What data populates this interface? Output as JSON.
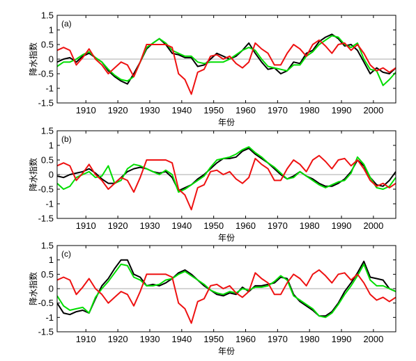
{
  "chart_data": [
    {
      "type": "line",
      "panel_label": "(a)",
      "xlabel": "年份",
      "ylabel": "降水指数",
      "xlim": [
        1901,
        2007
      ],
      "ylim": [
        -1.5,
        1.5
      ],
      "x_ticks": [
        1910,
        1920,
        1930,
        1940,
        1950,
        1960,
        1970,
        1980,
        1990,
        2000
      ],
      "y_ticks": [
        -1.5,
        -1,
        -0.5,
        0,
        0.5,
        1,
        1.5
      ],
      "zero_line": true,
      "x": [
        1901,
        1903,
        1905,
        1907,
        1909,
        1911,
        1913,
        1915,
        1917,
        1919,
        1921,
        1923,
        1925,
        1927,
        1929,
        1931,
        1933,
        1935,
        1937,
        1939,
        1941,
        1943,
        1945,
        1947,
        1949,
        1951,
        1953,
        1955,
        1957,
        1959,
        1961,
        1963,
        1965,
        1967,
        1969,
        1971,
        1973,
        1975,
        1977,
        1979,
        1981,
        1983,
        1985,
        1987,
        1989,
        1991,
        1993,
        1995,
        1997,
        1999,
        2001,
        2003,
        2005,
        2007
      ],
      "series": [
        {
          "color": "#000000",
          "values": [
            -0.1,
            0.0,
            0.05,
            -0.1,
            0.1,
            0.2,
            0.05,
            -0.1,
            -0.4,
            -0.6,
            -0.75,
            -0.85,
            -0.5,
            -0.1,
            0.35,
            0.55,
            0.7,
            0.5,
            0.2,
            0.15,
            0.05,
            0.05,
            -0.25,
            -0.2,
            0.0,
            0.2,
            0.1,
            0.0,
            0.1,
            0.3,
            0.55,
            0.2,
            -0.1,
            -0.35,
            -0.3,
            -0.5,
            -0.4,
            -0.1,
            -0.15,
            0.2,
            0.3,
            0.6,
            0.75,
            0.85,
            0.7,
            0.45,
            0.5,
            0.3,
            -0.1,
            -0.5,
            -0.3,
            -0.45,
            -0.5,
            -0.3
          ]
        },
        {
          "color": "#00dd00",
          "values": [
            -0.25,
            -0.1,
            -0.1,
            0.0,
            0.15,
            0.25,
            0.05,
            -0.1,
            -0.35,
            -0.55,
            -0.7,
            -0.75,
            -0.6,
            -0.1,
            0.4,
            0.55,
            0.7,
            0.55,
            0.3,
            0.2,
            0.1,
            0.1,
            -0.1,
            -0.15,
            -0.1,
            -0.1,
            -0.1,
            0.0,
            0.15,
            0.3,
            0.4,
            0.3,
            0.0,
            -0.25,
            -0.3,
            -0.35,
            -0.4,
            -0.2,
            -0.2,
            0.1,
            0.25,
            0.5,
            0.65,
            0.8,
            0.75,
            0.5,
            0.4,
            0.55,
            0.0,
            -0.35,
            -0.4,
            -0.9,
            -0.7,
            -0.45
          ]
        },
        {
          "color": "#ee1111",
          "values": [
            0.3,
            0.4,
            0.3,
            -0.2,
            0.05,
            0.35,
            0.0,
            -0.2,
            -0.5,
            -0.3,
            -0.1,
            -0.2,
            -0.6,
            -0.1,
            0.5,
            0.5,
            0.5,
            0.5,
            0.4,
            -0.5,
            -0.7,
            -1.2,
            -0.45,
            -0.35,
            0.1,
            0.15,
            0.0,
            0.1,
            -0.15,
            -0.3,
            -0.1,
            0.55,
            0.35,
            0.2,
            -0.2,
            -0.2,
            0.2,
            0.5,
            0.35,
            0.1,
            0.5,
            0.65,
            0.45,
            0.2,
            0.5,
            0.55,
            0.3,
            0.5,
            0.2,
            -0.2,
            -0.4,
            -0.3,
            -0.45,
            -0.3
          ]
        }
      ]
    },
    {
      "type": "line",
      "panel_label": "(b)",
      "xlabel": "年份",
      "ylabel": "降水指数",
      "xlim": [
        1901,
        2007
      ],
      "ylim": [
        -1.5,
        1.5
      ],
      "x_ticks": [
        1910,
        1920,
        1930,
        1940,
        1950,
        1960,
        1970,
        1980,
        1990,
        2000
      ],
      "y_ticks": [
        -1.5,
        -1,
        -0.5,
        0,
        0.5,
        1,
        1.5
      ],
      "zero_line": true,
      "x": [
        1901,
        1903,
        1905,
        1907,
        1909,
        1911,
        1913,
        1915,
        1917,
        1919,
        1921,
        1923,
        1925,
        1927,
        1929,
        1931,
        1933,
        1935,
        1937,
        1939,
        1941,
        1943,
        1945,
        1947,
        1949,
        1951,
        1953,
        1955,
        1957,
        1959,
        1961,
        1963,
        1965,
        1967,
        1969,
        1971,
        1973,
        1975,
        1977,
        1979,
        1981,
        1983,
        1985,
        1987,
        1989,
        1991,
        1993,
        1995,
        1997,
        1999,
        2001,
        2003,
        2005,
        2007
      ],
      "series": [
        {
          "color": "#000000",
          "values": [
            -0.05,
            -0.1,
            0.0,
            0.05,
            0.1,
            0.2,
            0.05,
            -0.15,
            -0.3,
            -0.3,
            -0.1,
            0.1,
            0.2,
            0.25,
            0.2,
            0.1,
            0.05,
            0.1,
            -0.1,
            -0.55,
            -0.45,
            -0.35,
            -0.15,
            0.0,
            0.2,
            0.4,
            0.55,
            0.55,
            0.6,
            0.8,
            0.9,
            0.7,
            0.55,
            0.4,
            0.2,
            0.0,
            -0.15,
            -0.05,
            0.1,
            -0.05,
            -0.15,
            -0.3,
            -0.4,
            -0.4,
            -0.3,
            -0.15,
            0.1,
            0.5,
            0.3,
            -0.1,
            -0.35,
            -0.4,
            -0.2,
            0.1
          ]
        },
        {
          "color": "#00dd00",
          "values": [
            -0.3,
            -0.5,
            -0.4,
            -0.1,
            0.0,
            0.1,
            -0.1,
            -0.05,
            0.3,
            -0.3,
            -0.2,
            0.2,
            0.35,
            0.3,
            0.2,
            0.1,
            0.0,
            0.15,
            0.0,
            -0.6,
            -0.5,
            -0.35,
            -0.2,
            -0.05,
            0.25,
            0.5,
            0.55,
            0.6,
            0.7,
            0.85,
            0.95,
            0.75,
            0.6,
            0.4,
            0.25,
            0.05,
            -0.15,
            -0.1,
            0.1,
            -0.05,
            -0.2,
            -0.35,
            -0.45,
            -0.35,
            -0.25,
            -0.2,
            0.05,
            0.6,
            0.35,
            -0.1,
            -0.45,
            -0.5,
            -0.4,
            -0.1
          ]
        },
        {
          "color": "#ee1111",
          "values": [
            0.3,
            0.4,
            0.3,
            -0.2,
            0.05,
            0.35,
            0.0,
            -0.2,
            -0.5,
            -0.3,
            -0.1,
            -0.2,
            -0.6,
            -0.1,
            0.5,
            0.5,
            0.5,
            0.5,
            0.4,
            -0.5,
            -0.7,
            -1.2,
            -0.45,
            -0.35,
            0.1,
            0.15,
            0.0,
            0.1,
            -0.15,
            -0.3,
            -0.1,
            0.55,
            0.35,
            0.2,
            -0.2,
            -0.2,
            0.2,
            0.5,
            0.35,
            0.1,
            0.5,
            0.65,
            0.45,
            0.2,
            0.5,
            0.55,
            0.3,
            0.5,
            0.2,
            -0.2,
            -0.4,
            -0.3,
            -0.45,
            -0.3
          ]
        }
      ]
    },
    {
      "type": "line",
      "panel_label": "(c)",
      "xlabel": "年份",
      "ylabel": "降水指数",
      "xlim": [
        1901,
        2007
      ],
      "ylim": [
        -1.5,
        1.5
      ],
      "x_ticks": [
        1910,
        1920,
        1930,
        1940,
        1950,
        1960,
        1970,
        1980,
        1990,
        2000
      ],
      "y_ticks": [
        -1.5,
        -1,
        -0.5,
        0,
        0.5,
        1,
        1.5
      ],
      "zero_line": true,
      "x": [
        1901,
        1903,
        1905,
        1907,
        1909,
        1911,
        1913,
        1915,
        1917,
        1919,
        1921,
        1923,
        1925,
        1927,
        1929,
        1931,
        1933,
        1935,
        1937,
        1939,
        1941,
        1943,
        1945,
        1947,
        1949,
        1951,
        1953,
        1955,
        1957,
        1959,
        1961,
        1963,
        1965,
        1967,
        1969,
        1971,
        1973,
        1975,
        1977,
        1979,
        1981,
        1983,
        1985,
        1987,
        1989,
        1991,
        1993,
        1995,
        1997,
        1999,
        2001,
        2003,
        2005,
        2007
      ],
      "series": [
        {
          "color": "#000000",
          "values": [
            -0.5,
            -0.85,
            -0.9,
            -0.8,
            -0.75,
            -0.85,
            -0.35,
            0.1,
            0.35,
            0.7,
            1.0,
            1.0,
            0.5,
            0.4,
            0.1,
            0.15,
            0.1,
            0.2,
            0.35,
            0.55,
            0.65,
            0.5,
            0.3,
            0.1,
            -0.05,
            -0.2,
            -0.25,
            -0.15,
            -0.2,
            0.05,
            -0.1,
            0.1,
            0.1,
            0.15,
            0.2,
            0.4,
            0.35,
            -0.2,
            -0.45,
            -0.6,
            -0.75,
            -0.95,
            -0.95,
            -0.8,
            -0.5,
            -0.1,
            0.2,
            0.55,
            0.95,
            0.4,
            0.35,
            0.3,
            0.0,
            -0.1
          ]
        },
        {
          "color": "#00dd00",
          "values": [
            -0.25,
            -0.6,
            -0.75,
            -0.7,
            -0.65,
            -0.85,
            -0.3,
            0.0,
            0.25,
            0.55,
            0.85,
            0.8,
            0.4,
            0.3,
            0.1,
            0.1,
            0.15,
            0.3,
            0.35,
            0.5,
            0.6,
            0.45,
            0.3,
            0.15,
            -0.05,
            -0.15,
            -0.2,
            -0.1,
            -0.15,
            0.0,
            -0.05,
            0.05,
            0.05,
            0.1,
            0.25,
            0.45,
            0.3,
            -0.25,
            -0.4,
            -0.55,
            -0.7,
            -0.95,
            -1.0,
            -0.85,
            -0.55,
            -0.2,
            0.1,
            0.45,
            0.85,
            0.3,
            0.1,
            0.1,
            0.0,
            -0.1
          ]
        },
        {
          "color": "#ee1111",
          "values": [
            0.3,
            0.4,
            0.3,
            -0.2,
            0.05,
            0.35,
            0.0,
            -0.2,
            -0.5,
            -0.3,
            -0.1,
            -0.2,
            -0.6,
            -0.1,
            0.5,
            0.5,
            0.5,
            0.5,
            0.4,
            -0.5,
            -0.7,
            -1.2,
            -0.45,
            -0.35,
            0.1,
            0.15,
            0.0,
            0.1,
            -0.15,
            -0.3,
            -0.1,
            0.55,
            0.35,
            0.2,
            -0.2,
            -0.2,
            0.2,
            0.5,
            0.35,
            0.1,
            0.5,
            0.65,
            0.45,
            0.2,
            0.5,
            0.55,
            0.3,
            0.5,
            0.2,
            -0.2,
            -0.4,
            -0.3,
            -0.45,
            -0.3
          ]
        }
      ]
    }
  ]
}
